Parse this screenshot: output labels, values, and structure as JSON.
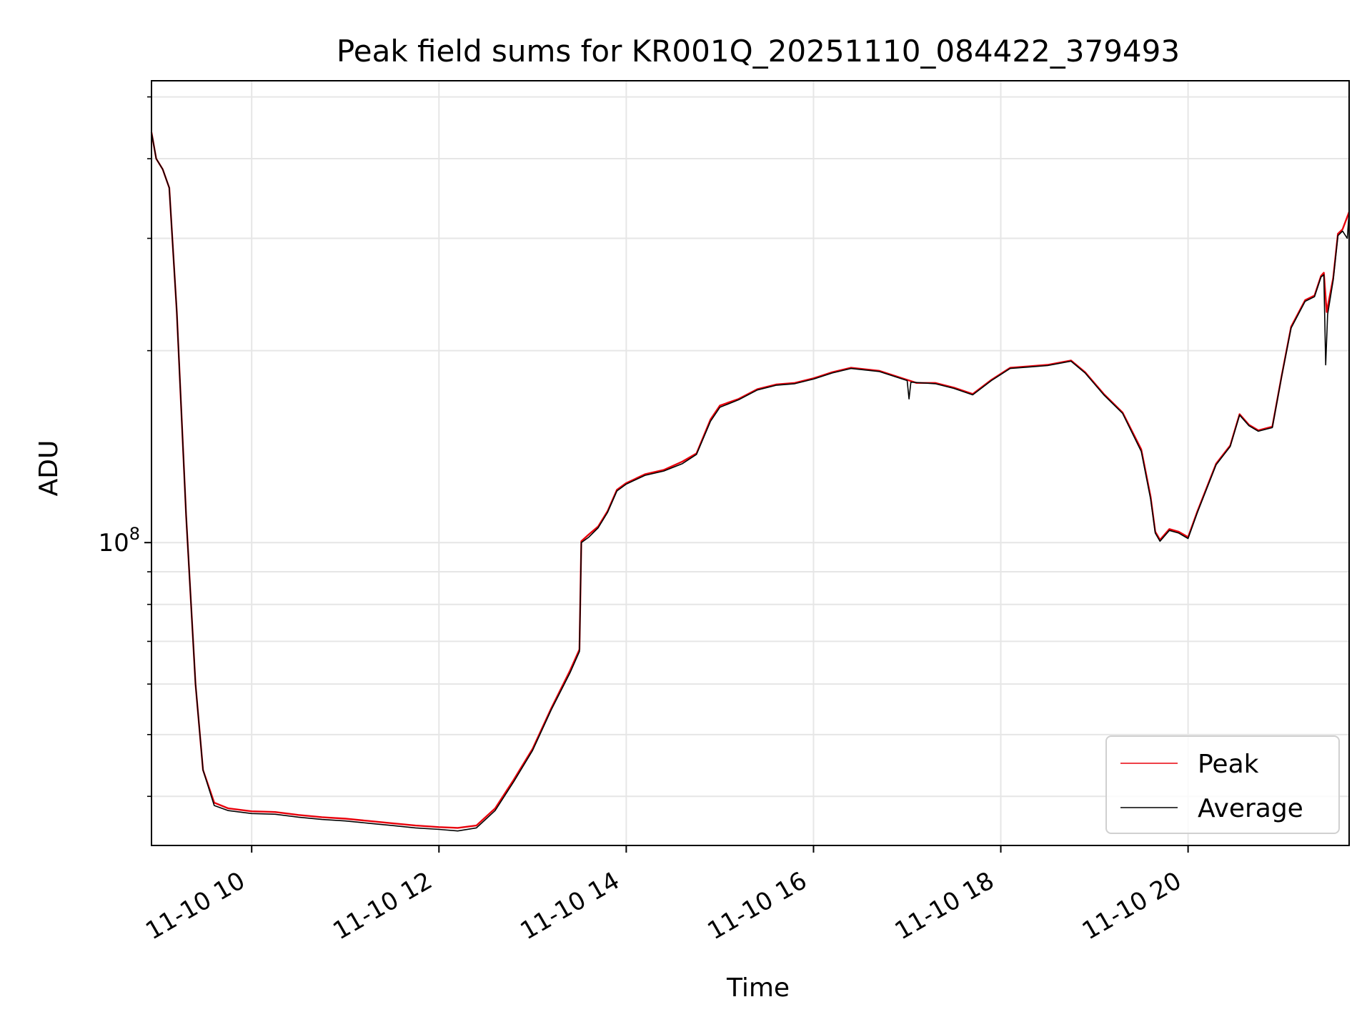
{
  "chart_data": {
    "type": "line",
    "title": "Peak field sums for KR001Q_20251110_084422_379493",
    "xlabel": "Time",
    "ylabel": "ADU",
    "yscale": "log",
    "x_units": "hours since 11-10 00:00",
    "xlim": [
      8.93,
      21.72
    ],
    "ylim": [
      33500000,
      530000000
    ],
    "xticks": [
      {
        "value": 10,
        "label": "11-10 10"
      },
      {
        "value": 12,
        "label": "11-10 12"
      },
      {
        "value": 14,
        "label": "11-10 14"
      },
      {
        "value": 16,
        "label": "11-10 16"
      },
      {
        "value": 18,
        "label": "11-10 18"
      },
      {
        "value": 20,
        "label": "11-10 20"
      }
    ],
    "yticks_major": [
      {
        "value": 100000000,
        "base": "10",
        "exp": "8"
      }
    ],
    "yticks_minor": [
      40000000,
      50000000,
      60000000,
      70000000,
      80000000,
      90000000,
      200000000,
      300000000,
      400000000,
      500000000
    ],
    "grid": true,
    "legend_position": "lower-right",
    "series": [
      {
        "name": "Peak",
        "color": "#e8000b",
        "points": [
          [
            8.93,
            440000000
          ],
          [
            8.98,
            400000000
          ],
          [
            9.05,
            385000000
          ],
          [
            9.12,
            360000000
          ],
          [
            9.2,
            230000000
          ],
          [
            9.3,
            110000000
          ],
          [
            9.4,
            60000000
          ],
          [
            9.48,
            44000000
          ],
          [
            9.6,
            39100000
          ],
          [
            9.75,
            38300000
          ],
          [
            10.0,
            37900000
          ],
          [
            10.25,
            37800000
          ],
          [
            10.5,
            37400000
          ],
          [
            10.75,
            37100000
          ],
          [
            11.0,
            36900000
          ],
          [
            11.25,
            36600000
          ],
          [
            11.5,
            36300000
          ],
          [
            11.75,
            36000000
          ],
          [
            12.0,
            35800000
          ],
          [
            12.2,
            35700000
          ],
          [
            12.4,
            36000000
          ],
          [
            12.6,
            38300000
          ],
          [
            12.8,
            42500000
          ],
          [
            13.0,
            47500000
          ],
          [
            13.2,
            55000000
          ],
          [
            13.4,
            63000000
          ],
          [
            13.5,
            68000000
          ],
          [
            13.52,
            100500000
          ],
          [
            13.6,
            103000000
          ],
          [
            13.7,
            106000000
          ],
          [
            13.8,
            112000000
          ],
          [
            13.9,
            121000000
          ],
          [
            14.0,
            124000000
          ],
          [
            14.2,
            128000000
          ],
          [
            14.4,
            130000000
          ],
          [
            14.6,
            134000000
          ],
          [
            14.75,
            138000000
          ],
          [
            14.9,
            156000000
          ],
          [
            15.0,
            164000000
          ],
          [
            15.2,
            168000000
          ],
          [
            15.4,
            174000000
          ],
          [
            15.6,
            177000000
          ],
          [
            15.8,
            178000000
          ],
          [
            16.0,
            181000000
          ],
          [
            16.2,
            185000000
          ],
          [
            16.4,
            188000000
          ],
          [
            16.7,
            186000000
          ],
          [
            17.0,
            180000000
          ],
          [
            17.1,
            178000000
          ],
          [
            17.3,
            178000000
          ],
          [
            17.5,
            175000000
          ],
          [
            17.7,
            171000000
          ],
          [
            17.9,
            180000000
          ],
          [
            18.1,
            188000000
          ],
          [
            18.3,
            189000000
          ],
          [
            18.5,
            190000000
          ],
          [
            18.75,
            193000000
          ],
          [
            18.9,
            185000000
          ],
          [
            19.1,
            171000000
          ],
          [
            19.3,
            160000000
          ],
          [
            19.5,
            140000000
          ],
          [
            19.6,
            118000000
          ],
          [
            19.65,
            104000000
          ],
          [
            19.7,
            101000000
          ],
          [
            19.8,
            105000000
          ],
          [
            19.9,
            104000000
          ],
          [
            20.0,
            102000000
          ],
          [
            20.1,
            112000000
          ],
          [
            20.3,
            133000000
          ],
          [
            20.45,
            142000000
          ],
          [
            20.55,
            159000000
          ],
          [
            20.65,
            153000000
          ],
          [
            20.75,
            150000000
          ],
          [
            20.9,
            152000000
          ],
          [
            21.0,
            183000000
          ],
          [
            21.1,
            218000000
          ],
          [
            21.25,
            240000000
          ],
          [
            21.35,
            244000000
          ],
          [
            21.42,
            262000000
          ],
          [
            21.45,
            265000000
          ],
          [
            21.48,
            230000000
          ],
          [
            21.55,
            260000000
          ],
          [
            21.6,
            305000000
          ],
          [
            21.65,
            310000000
          ],
          [
            21.72,
            330000000
          ]
        ]
      },
      {
        "name": "Average",
        "color": "#000000",
        "points": [
          [
            8.93,
            440000000
          ],
          [
            8.98,
            400000000
          ],
          [
            9.05,
            385000000
          ],
          [
            9.12,
            360000000
          ],
          [
            9.2,
            230000000
          ],
          [
            9.3,
            110000000
          ],
          [
            9.4,
            60000000
          ],
          [
            9.48,
            44000000
          ],
          [
            9.6,
            38700000
          ],
          [
            9.75,
            38000000
          ],
          [
            10.0,
            37600000
          ],
          [
            10.25,
            37500000
          ],
          [
            10.5,
            37100000
          ],
          [
            10.75,
            36800000
          ],
          [
            11.0,
            36600000
          ],
          [
            11.25,
            36300000
          ],
          [
            11.5,
            36000000
          ],
          [
            11.75,
            35700000
          ],
          [
            12.0,
            35500000
          ],
          [
            12.2,
            35300000
          ],
          [
            12.4,
            35700000
          ],
          [
            12.6,
            38000000
          ],
          [
            12.8,
            42200000
          ],
          [
            13.0,
            47200000
          ],
          [
            13.2,
            54700000
          ],
          [
            13.4,
            62500000
          ],
          [
            13.5,
            67500000
          ],
          [
            13.52,
            100000000
          ],
          [
            13.6,
            102000000
          ],
          [
            13.7,
            105500000
          ],
          [
            13.8,
            111500000
          ],
          [
            13.9,
            120500000
          ],
          [
            14.0,
            123500000
          ],
          [
            14.2,
            127500000
          ],
          [
            14.4,
            129500000
          ],
          [
            14.6,
            133000000
          ],
          [
            14.75,
            137500000
          ],
          [
            14.9,
            155000000
          ],
          [
            15.0,
            163000000
          ],
          [
            15.2,
            167500000
          ],
          [
            15.4,
            173500000
          ],
          [
            15.6,
            176500000
          ],
          [
            15.8,
            177500000
          ],
          [
            16.0,
            180500000
          ],
          [
            16.2,
            184500000
          ],
          [
            16.4,
            187500000
          ],
          [
            16.7,
            185500000
          ],
          [
            17.0,
            179500000
          ],
          [
            17.02,
            168000000
          ],
          [
            17.04,
            178500000
          ],
          [
            17.3,
            177500000
          ],
          [
            17.5,
            174500000
          ],
          [
            17.7,
            170500000
          ],
          [
            17.9,
            179500000
          ],
          [
            18.1,
            187500000
          ],
          [
            18.3,
            188500000
          ],
          [
            18.5,
            189500000
          ],
          [
            18.75,
            192500000
          ],
          [
            18.9,
            184500000
          ],
          [
            19.1,
            170500000
          ],
          [
            19.3,
            159500000
          ],
          [
            19.5,
            139000000
          ],
          [
            19.6,
            117000000
          ],
          [
            19.65,
            103500000
          ],
          [
            19.7,
            100500000
          ],
          [
            19.8,
            104500000
          ],
          [
            19.9,
            103500000
          ],
          [
            20.0,
            101500000
          ],
          [
            20.1,
            111500000
          ],
          [
            20.3,
            132500000
          ],
          [
            20.45,
            141500000
          ],
          [
            20.55,
            158500000
          ],
          [
            20.65,
            152500000
          ],
          [
            20.75,
            149500000
          ],
          [
            20.9,
            151500000
          ],
          [
            21.0,
            182500000
          ],
          [
            21.1,
            217000000
          ],
          [
            21.25,
            239000000
          ],
          [
            21.35,
            243000000
          ],
          [
            21.42,
            261000000
          ],
          [
            21.45,
            263000000
          ],
          [
            21.47,
            190000000
          ],
          [
            21.49,
            228000000
          ],
          [
            21.55,
            258000000
          ],
          [
            21.6,
            303000000
          ],
          [
            21.65,
            308000000
          ],
          [
            21.7,
            300000000
          ],
          [
            21.72,
            330000000
          ]
        ]
      }
    ]
  }
}
